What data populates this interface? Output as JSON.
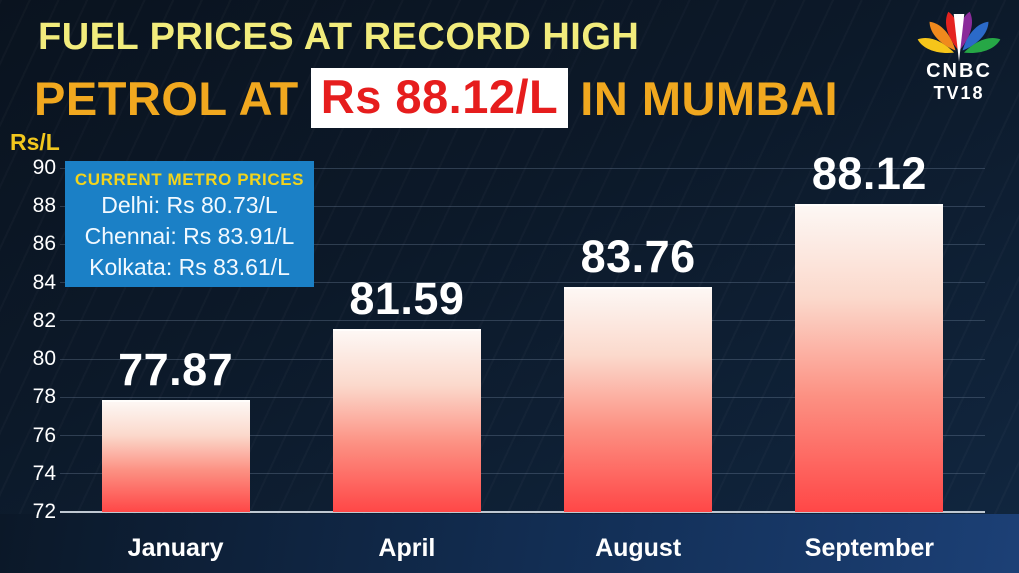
{
  "header": {
    "line1": "FUEL PRICES AT RECORD HIGH",
    "line2_prefix": "PETROL AT",
    "line2_highlight": "Rs 88.12/L",
    "line2_suffix": "IN MUMBAI"
  },
  "logo": {
    "line1": "CNBC",
    "line2": "TV18",
    "peacock_colors": [
      "#f6c51a",
      "#f08a1d",
      "#e5231f",
      "#8a2b9a",
      "#2b6ac9",
      "#26a746"
    ]
  },
  "info_box": {
    "title": "CURRENT METRO PRICES",
    "rows": [
      "Delhi: Rs 80.73/L",
      "Chennai: Rs 83.91/L",
      "Kolkata: Rs 83.61/L"
    ]
  },
  "chart_data": {
    "type": "bar",
    "title": "FUEL PRICES AT RECORD HIGH",
    "subtitle": "PETROL AT Rs 88.12/L IN MUMBAI",
    "categories": [
      "January",
      "April",
      "August",
      "September"
    ],
    "values": [
      77.87,
      81.59,
      83.76,
      88.12
    ],
    "value_labels": [
      "77.87",
      "81.59",
      "83.76",
      "88.12"
    ],
    "xlabel": "",
    "ylabel": "Rs/L",
    "ylim": [
      72,
      90
    ],
    "yticks": [
      72,
      74,
      76,
      78,
      80,
      82,
      84,
      86,
      88,
      90
    ],
    "grid": true,
    "legend": false,
    "bar_gradient_top": "#fdf7f4",
    "bar_gradient_bottom": "#ff4747",
    "annotation_box": {
      "title": "CURRENT METRO PRICES",
      "rows": [
        "Delhi: Rs 80.73/L",
        "Chennai: Rs 83.91/L",
        "Kolkata: Rs 83.61/L"
      ]
    }
  },
  "colors": {
    "background_top": "#0a131f",
    "background_bottom": "#112741",
    "headline_primary": "#f2ec7c",
    "headline_secondary": "#f1a81f",
    "highlight_text": "#e61d1d",
    "highlight_bg": "#ffffff",
    "info_box_bg": "#1b80c6",
    "info_box_title": "#f2d41c",
    "axis_unit_label": "#f2c71d",
    "tick_label": "#ffffff",
    "baseline": "#bfc8d2"
  }
}
